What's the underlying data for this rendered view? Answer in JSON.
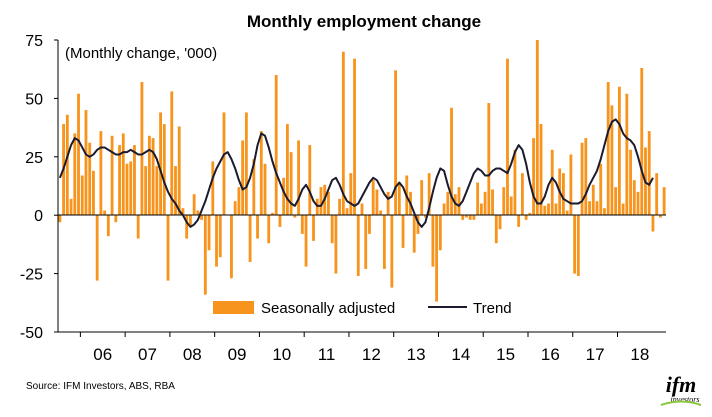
{
  "chart_data": {
    "type": "bar+line",
    "title": "Monthly employment change",
    "ylabel": "(Monthly change, '000)",
    "xlabel": "",
    "ylim": [
      -50,
      75
    ],
    "yticks": [
      -50,
      -25,
      0,
      25,
      50,
      75
    ],
    "grid": false,
    "legend_position": "bottom-center",
    "years": [
      "06",
      "07",
      "08",
      "09",
      "10",
      "11",
      "12",
      "13",
      "14",
      "15",
      "16",
      "17",
      "18"
    ],
    "first_month": "2005-07",
    "series": [
      {
        "name": "Seasonally adjusted",
        "type": "bar",
        "color": "#F7941D",
        "values": [
          -3,
          39,
          43,
          7,
          35,
          52,
          17,
          45,
          31,
          19,
          -28,
          36,
          2,
          -9,
          34,
          -3,
          30,
          35,
          22,
          23,
          30,
          -10,
          57,
          21,
          34,
          33,
          21,
          44,
          39,
          -28,
          53,
          21,
          38,
          3,
          -10,
          -5,
          9,
          2,
          -2,
          -34,
          -15,
          23,
          -22,
          -18,
          44,
          0,
          -27,
          6,
          12,
          32,
          44,
          -20,
          24,
          -10,
          36,
          22,
          -12,
          1,
          60,
          -5,
          16,
          39,
          27,
          -1,
          32,
          -8,
          -22,
          30,
          -11,
          7,
          12,
          13,
          10,
          -12,
          -25,
          7,
          70,
          3,
          18,
          67,
          -26,
          5,
          -23,
          -8,
          15,
          11,
          2,
          -23,
          10,
          -31,
          62,
          14,
          -14,
          17,
          10,
          -16,
          -8,
          15,
          -1,
          18,
          -22,
          -37,
          -15,
          5,
          10,
          46,
          9,
          12,
          -2,
          -1,
          -2,
          -2,
          14,
          5,
          10,
          48,
          11,
          -12,
          -6,
          12,
          67,
          8,
          28,
          -5,
          18,
          -2,
          1,
          33,
          75,
          39,
          4,
          5,
          28,
          5,
          20,
          18,
          2,
          26,
          -25,
          -26,
          31,
          33,
          6,
          13,
          6,
          22,
          3,
          57,
          47,
          12,
          55,
          5,
          52,
          28,
          15,
          10,
          63,
          29,
          36,
          -7,
          18,
          -1,
          12
        ]
      },
      {
        "name": "Trend",
        "type": "line",
        "color": "#1B1B2F",
        "values": [
          16,
          20,
          25,
          30,
          33,
          32,
          29,
          26,
          25,
          26,
          28,
          29,
          29,
          28,
          27,
          26,
          26,
          27,
          27,
          28,
          27,
          26,
          26,
          27,
          28,
          27,
          24,
          19,
          14,
          10,
          7,
          5,
          2,
          0,
          -3,
          -5,
          -4,
          -2,
          2,
          6,
          11,
          16,
          20,
          23,
          26,
          27,
          24,
          20,
          15,
          11,
          12,
          16,
          22,
          30,
          35,
          34,
          29,
          23,
          18,
          14,
          10,
          7,
          5,
          4,
          7,
          11,
          13,
          10,
          6,
          4,
          4,
          7,
          11,
          15,
          16,
          13,
          9,
          6,
          5,
          4,
          5,
          8,
          11,
          14,
          16,
          15,
          12,
          9,
          7,
          8,
          12,
          14,
          12,
          8,
          5,
          1,
          -3,
          -5,
          -3,
          3,
          10,
          16,
          20,
          19,
          13,
          8,
          5,
          4,
          6,
          10,
          14,
          18,
          20,
          19,
          17,
          17,
          19,
          20,
          20,
          19,
          18,
          22,
          27,
          30,
          28,
          22,
          14,
          8,
          5,
          5,
          8,
          13,
          16,
          14,
          10,
          7,
          6,
          5,
          5,
          5,
          6,
          9,
          13,
          16,
          19,
          24,
          30,
          36,
          40,
          41,
          39,
          35,
          33,
          32,
          30,
          25,
          19,
          14,
          13,
          16
        ]
      }
    ],
    "source": "Source: IFM Investors, ABS, RBA",
    "logo_text": "ifm investors"
  }
}
